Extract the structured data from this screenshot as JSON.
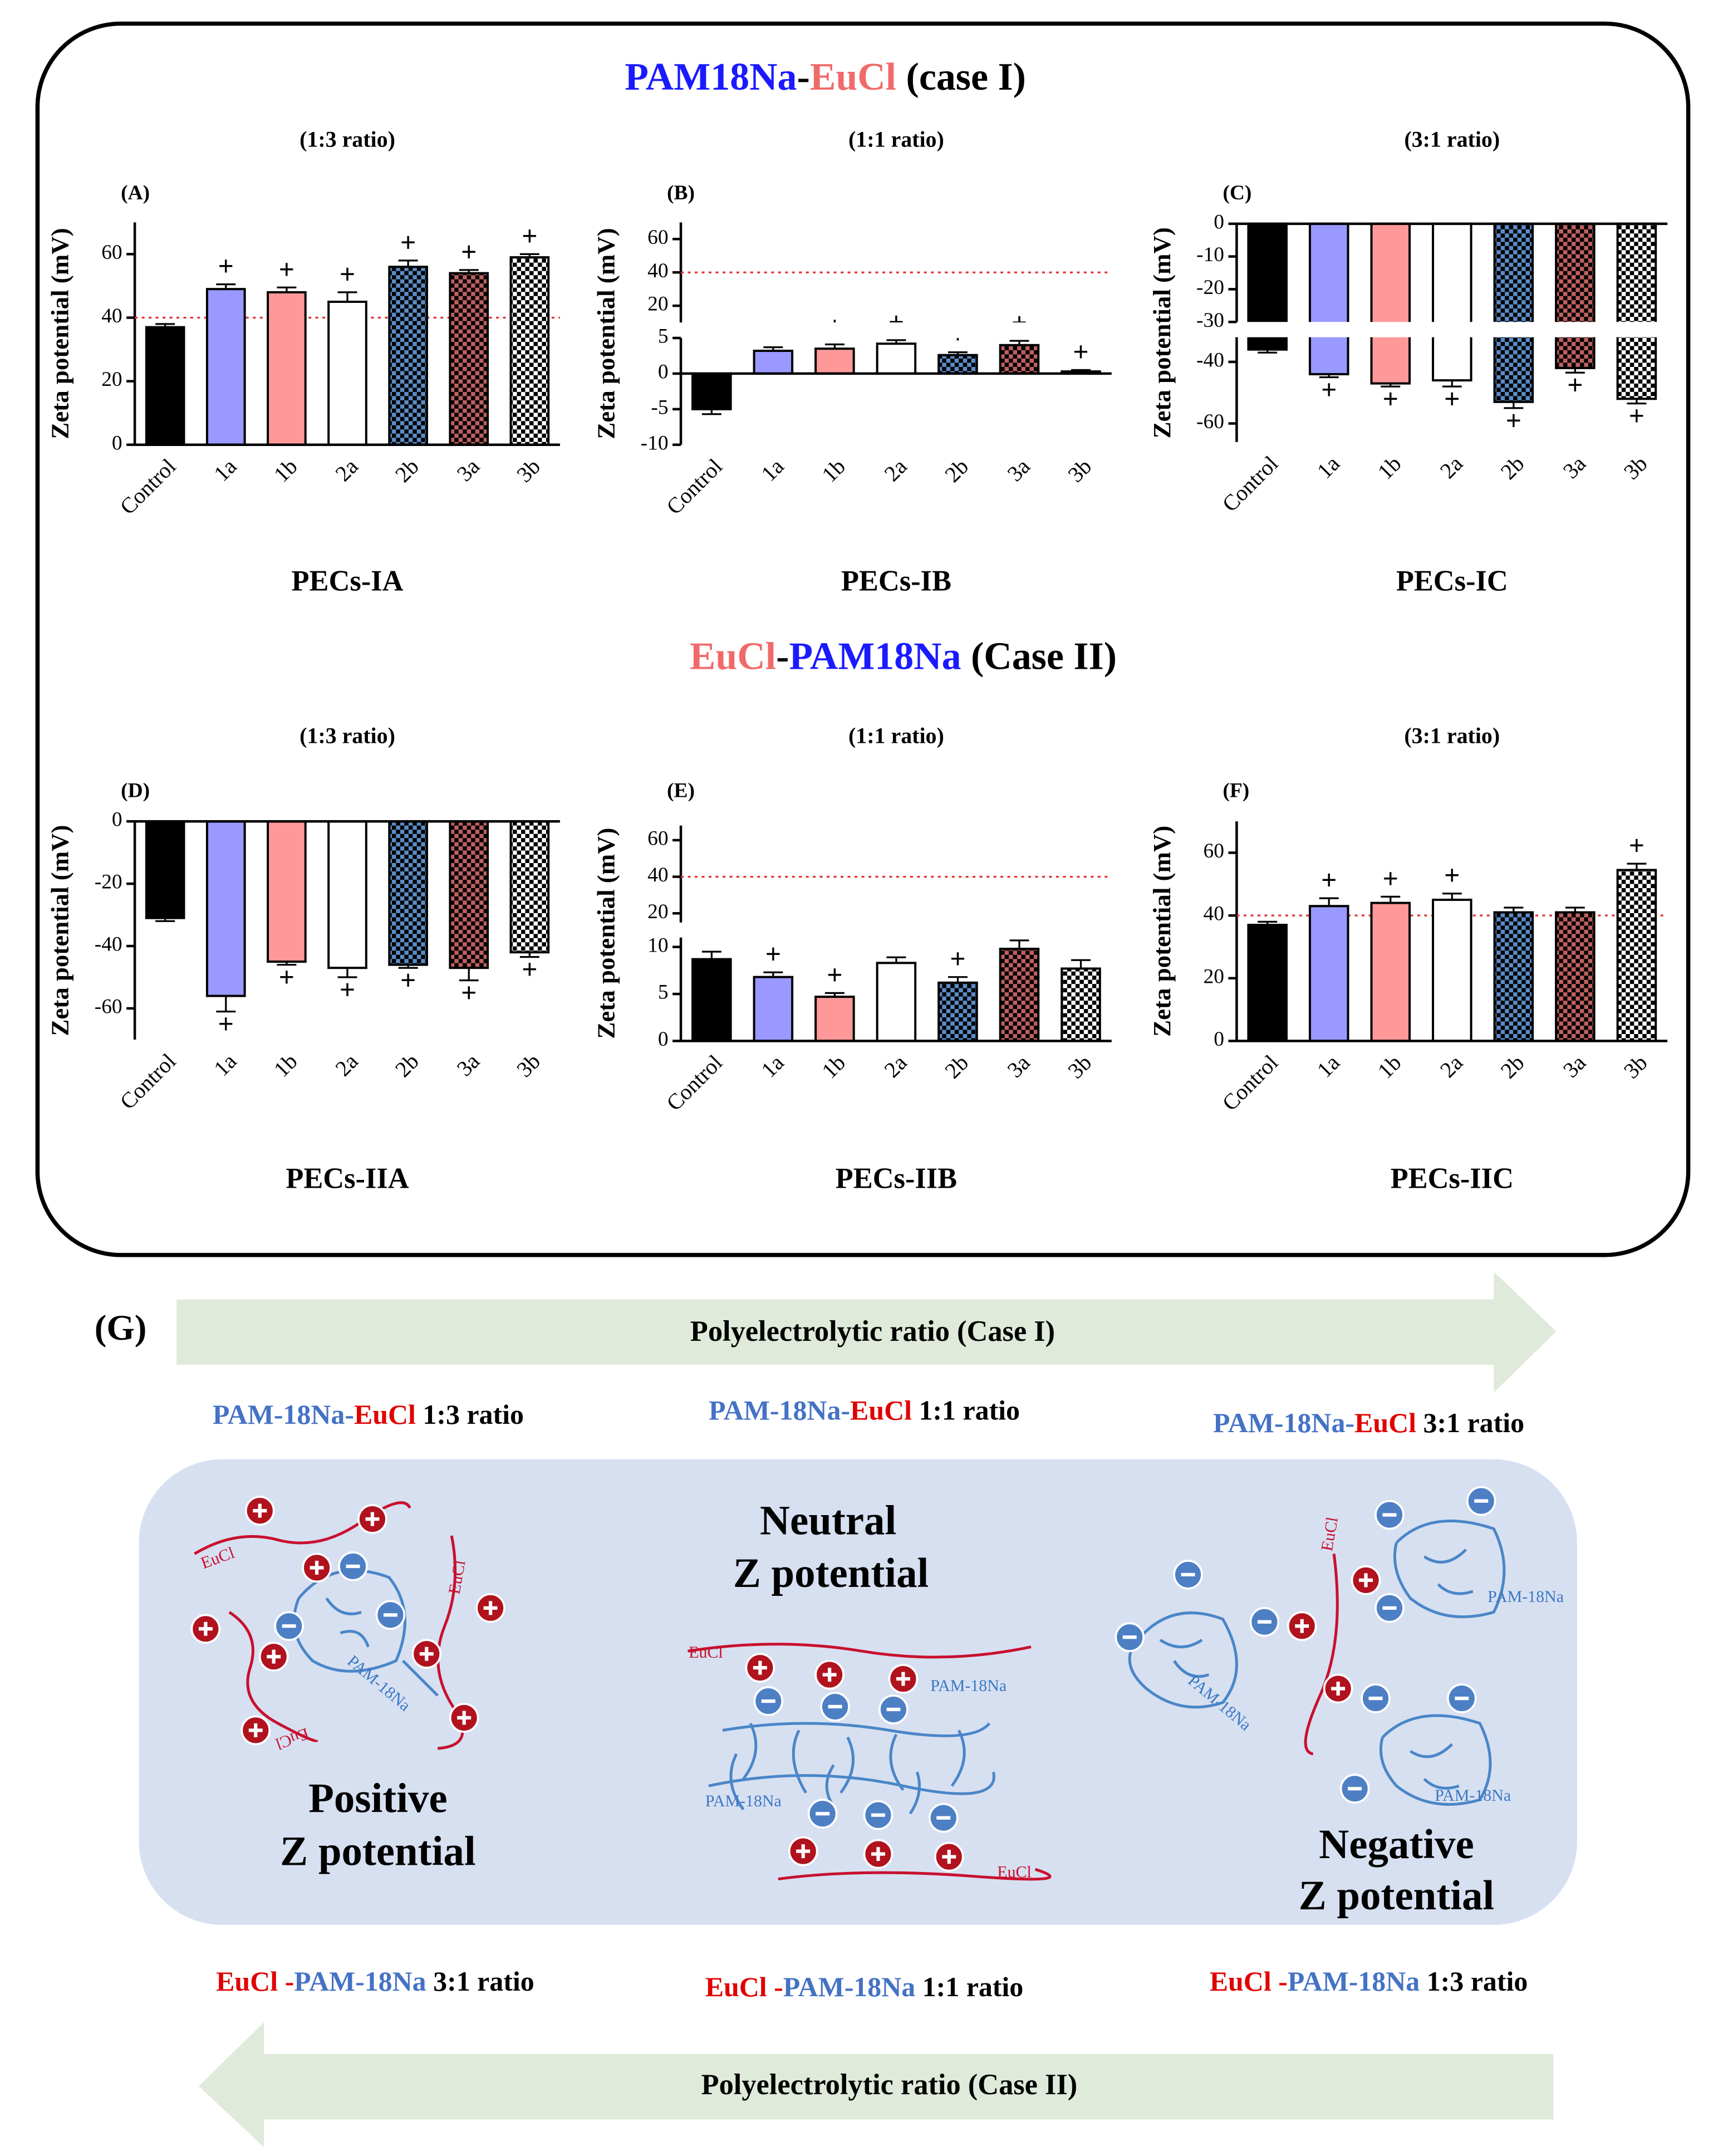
{
  "chart_data": [
    {
      "type": "bar",
      "panel": "(A)",
      "subtitle": "(1:3 ratio)",
      "ylabel": "Zeta potential (mV)",
      "xlabel": "PECs-IA",
      "categories": [
        "Control",
        "1a",
        "1b",
        "2a",
        "2b",
        "3a",
        "3b"
      ],
      "values": [
        37,
        49,
        48,
        45,
        56,
        54,
        59
      ],
      "errors": [
        1,
        1.5,
        1.5,
        3,
        2,
        1,
        1
      ],
      "significance": [
        null,
        "+",
        "+",
        "+",
        "+",
        "+",
        "+"
      ],
      "colors": [
        "#000000",
        "#9999ff",
        "#ff9999",
        "#ffffff",
        "#5b8cc8",
        "#c06060",
        "#ffffff"
      ],
      "hatch": [
        false,
        false,
        false,
        false,
        true,
        true,
        true
      ],
      "ylim": [
        0,
        70
      ],
      "yticks": [
        0,
        20,
        40,
        60
      ],
      "reference_line": 40,
      "reference_color": "#e03030"
    },
    {
      "type": "bar",
      "panel": "(B)",
      "subtitle": "(1:1 ratio)",
      "ylabel": "Zeta potential (mV)",
      "xlabel": "PECs-IB",
      "categories": [
        "Control",
        "1a",
        "1b",
        "2a",
        "2b",
        "3a",
        "3b"
      ],
      "values": [
        -5,
        3.2,
        3.5,
        4.2,
        2.6,
        4,
        0.3
      ],
      "errors": [
        0.7,
        0.5,
        0.6,
        0.5,
        0.4,
        0.6,
        0.2
      ],
      "significance": [
        null,
        "+",
        "+",
        "+",
        "+",
        "+",
        "+"
      ],
      "colors": [
        "#000000",
        "#9999ff",
        "#ff9999",
        "#ffffff",
        "#5b8cc8",
        "#c06060",
        "#ffffff"
      ],
      "hatch": [
        false,
        false,
        false,
        false,
        true,
        true,
        true
      ],
      "ylim": [
        -10,
        70
      ],
      "axis_break": [
        5,
        10
      ],
      "yticks": [
        -10,
        -5,
        0,
        5,
        20,
        40,
        60
      ],
      "reference_line": 40,
      "reference_color": "#e03030"
    },
    {
      "type": "bar",
      "panel": "(C)",
      "subtitle": "(3:1 ratio)",
      "ylabel": "Zeta potential (mV)",
      "xlabel": "PECs-IC",
      "categories": [
        "Control",
        "1a",
        "1b",
        "2a",
        "2b",
        "3a",
        "3b"
      ],
      "values": [
        -36,
        -44,
        -47,
        -46,
        -53,
        -42,
        -52
      ],
      "errors": [
        1,
        1,
        1,
        2,
        2,
        1.5,
        1.5
      ],
      "significance": [
        null,
        "+",
        "+",
        "+",
        "+",
        "+",
        "+"
      ],
      "colors": [
        "#000000",
        "#9999ff",
        "#ff9999",
        "#ffffff",
        "#5b8cc8",
        "#c06060",
        "#ffffff"
      ],
      "hatch": [
        false,
        false,
        false,
        false,
        true,
        true,
        true
      ],
      "ylim": [
        -66,
        0
      ],
      "axis_break": [
        -32,
        -30
      ],
      "yticks": [
        0,
        -10,
        -20,
        -30,
        -40,
        -60
      ]
    },
    {
      "type": "bar",
      "panel": "(D)",
      "subtitle": "(1:3 ratio)",
      "ylabel": "Zeta potential (mV)",
      "xlabel": "PECs-IIA",
      "categories": [
        "Control",
        "1a",
        "1b",
        "2a",
        "2b",
        "3a",
        "3b"
      ],
      "values": [
        -31,
        -56,
        -45,
        -47,
        -46,
        -47,
        -42
      ],
      "errors": [
        1,
        5,
        1,
        3,
        1,
        4,
        1.5
      ],
      "significance": [
        null,
        "+",
        "+",
        "+",
        "+",
        "+",
        "+"
      ],
      "colors": [
        "#000000",
        "#9999ff",
        "#ff9999",
        "#ffffff",
        "#5b8cc8",
        "#c06060",
        "#ffffff"
      ],
      "hatch": [
        false,
        false,
        false,
        false,
        true,
        true,
        true
      ],
      "ylim": [
        -70,
        0
      ],
      "yticks": [
        0,
        -20,
        -40,
        -60
      ]
    },
    {
      "type": "bar",
      "panel": "(E)",
      "subtitle": "(1:1 ratio)",
      "ylabel": "Zeta potential (mV)",
      "xlabel": "PECs-IIB",
      "categories": [
        "Control",
        "1a",
        "1b",
        "2a",
        "2b",
        "3a",
        "3b"
      ],
      "values": [
        8.7,
        6.8,
        4.7,
        8.3,
        6.2,
        9.8,
        7.7
      ],
      "errors": [
        0.8,
        0.5,
        0.4,
        0.6,
        0.6,
        0.9,
        0.9
      ],
      "significance": [
        null,
        "+",
        "+",
        null,
        "+",
        null,
        null
      ],
      "colors": [
        "#000000",
        "#9999ff",
        "#ff9999",
        "#ffffff",
        "#5b8cc8",
        "#c06060",
        "#ffffff"
      ],
      "hatch": [
        false,
        false,
        false,
        false,
        true,
        true,
        true
      ],
      "ylim": [
        0,
        68
      ],
      "axis_break": [
        11,
        15
      ],
      "yticks": [
        0,
        5,
        10,
        20,
        40,
        60
      ],
      "reference_line": 40,
      "reference_color": "#e03030"
    },
    {
      "type": "bar",
      "panel": "(F)",
      "subtitle": "(3:1 ratio)",
      "ylabel": "Zeta potential (mV)",
      "xlabel": "PECs-IIC",
      "categories": [
        "Control",
        "1a",
        "1b",
        "2a",
        "2b",
        "3a",
        "3b"
      ],
      "values": [
        37,
        43,
        44,
        45,
        41,
        41,
        54.5
      ],
      "errors": [
        1,
        2.5,
        2,
        2,
        1.5,
        1.5,
        2
      ],
      "significance": [
        null,
        "+",
        "+",
        "+",
        null,
        null,
        "+"
      ],
      "colors": [
        "#000000",
        "#9999ff",
        "#ff9999",
        "#ffffff",
        "#5b8cc8",
        "#c06060",
        "#ffffff"
      ],
      "hatch": [
        false,
        false,
        false,
        false,
        true,
        true,
        true
      ],
      "ylim": [
        0,
        70
      ],
      "yticks": [
        0,
        20,
        40,
        60
      ],
      "reference_line": 40,
      "reference_color": "#e03030"
    }
  ],
  "figure": {
    "headings": [
      {
        "parts": [
          {
            "text": "PAM18Na",
            "color": "#1a1aff"
          },
          {
            "text": "-",
            "color": "#000000"
          },
          {
            "text": "EuCl",
            "color": "#f06a6a"
          },
          {
            "text": " (case I)",
            "color": "#000000"
          }
        ]
      },
      {
        "parts": [
          {
            "text": "EuCl",
            "color": "#f06a6a"
          },
          {
            "text": "-",
            "color": "#000000"
          },
          {
            "text": "PAM18Na",
            "color": "#1a1aff"
          },
          {
            "text": " (Case II)",
            "color": "#000000"
          }
        ]
      }
    ],
    "panel_g": "(G)",
    "arrow_top": "Polyelectrolytic ratio (Case I)",
    "arrow_bottom": "Polyelectrolytic ratio (Case II)",
    "top_labels": [
      {
        "parts": [
          {
            "text": "PAM-18Na-",
            "color": "#4472c4"
          },
          {
            "text": "EuCl",
            "color": "#e00000"
          },
          {
            "text": " 1:3 ratio",
            "color": "#000000"
          }
        ]
      },
      {
        "parts": [
          {
            "text": "PAM-18Na-",
            "color": "#4472c4"
          },
          {
            "text": "EuCl",
            "color": "#e00000"
          },
          {
            "text": " 1:1 ratio",
            "color": "#000000"
          }
        ]
      },
      {
        "parts": [
          {
            "text": "PAM-18Na-",
            "color": "#4472c4"
          },
          {
            "text": "EuCl",
            "color": "#e00000"
          },
          {
            "text": " 3:1 ratio",
            "color": "#000000"
          }
        ]
      }
    ],
    "bottom_labels": [
      {
        "parts": [
          {
            "text": "EuCl -",
            "color": "#e00000"
          },
          {
            "text": "PAM-18Na",
            "color": "#4472c4"
          },
          {
            "text": " 3:1 ratio",
            "color": "#000000"
          }
        ]
      },
      {
        "parts": [
          {
            "text": "EuCl -",
            "color": "#e00000"
          },
          {
            "text": "PAM-18Na",
            "color": "#4472c4"
          },
          {
            "text": " 1:1 ratio",
            "color": "#000000"
          }
        ]
      },
      {
        "parts": [
          {
            "text": "EuCl -",
            "color": "#e00000"
          },
          {
            "text": "PAM-18Na",
            "color": "#4472c4"
          },
          {
            "text": " 1:3 ratio",
            "color": "#000000"
          }
        ]
      }
    ],
    "states": [
      {
        "line1": "Positive",
        "line2": "Z potential"
      },
      {
        "line1": "Neutral",
        "line2": "Z potential"
      },
      {
        "line1": "Negative",
        "line2": "Z potential"
      }
    ],
    "molecule_labels": [
      "EuCl",
      "EuCl",
      "EuCl",
      "PAM-18Na",
      "EuCl",
      "PAM-18Na",
      "PAM-18Na",
      "EuCl",
      "EuCl",
      "PAM-18Na",
      "PAM-18Na",
      "PAM-18Na"
    ]
  }
}
